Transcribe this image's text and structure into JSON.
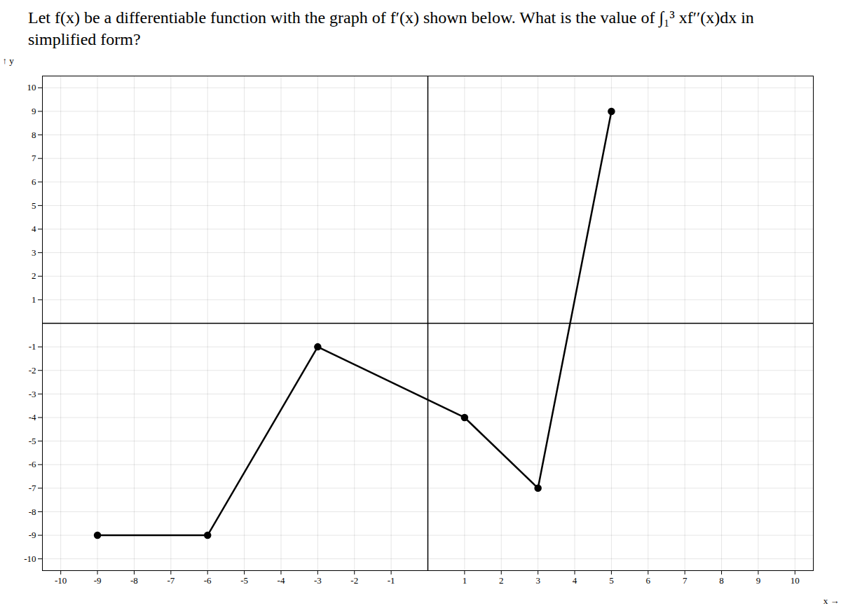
{
  "chart_data": {
    "type": "line",
    "title": "Let f(x) be a differentiable function with the graph of f′(x) shown below. What is the value of ∫₁³ xf′′(x)dx in simplified form?",
    "x": [
      -9,
      -6,
      -3,
      1,
      3,
      5
    ],
    "values": [
      -9,
      -9,
      -1,
      -4,
      -7,
      9
    ],
    "color": "#000000",
    "marker": "circle",
    "xlabel": "x",
    "ylabel": "y",
    "xlim": [
      -10.5,
      10.5
    ],
    "ylim": [
      -10.5,
      10.5
    ],
    "xticks": [
      -10,
      -9,
      -8,
      -7,
      -6,
      -5,
      -4,
      -3,
      -2,
      -1,
      1,
      2,
      3,
      4,
      5,
      6,
      7,
      8,
      9,
      10
    ],
    "yticks": [
      -10,
      -9,
      -8,
      -7,
      -6,
      -5,
      -4,
      -3,
      -2,
      -1,
      1,
      2,
      3,
      4,
      5,
      6,
      7,
      8,
      9,
      10
    ],
    "grid": true
  }
}
